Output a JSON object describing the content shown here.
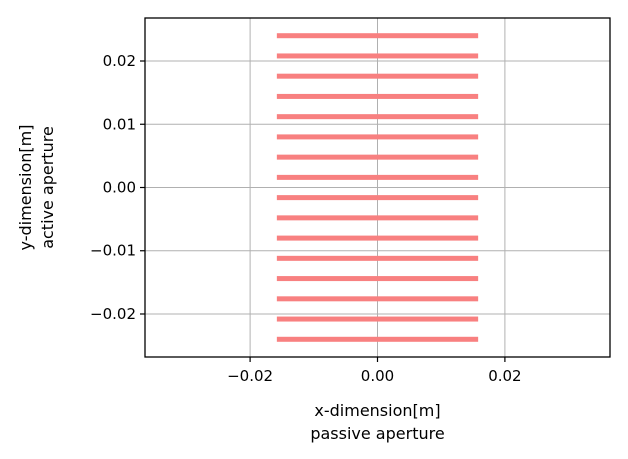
{
  "chart_data": {
    "type": "bar",
    "xlabel": "x-dimension[m]",
    "xlabel_line2": "passive aperture",
    "ylabel": "y-dimension[m]",
    "ylabel_line2": "active aperture",
    "xlim": [
      -0.0365,
      0.0365
    ],
    "ylim": [
      -0.0268,
      0.0268
    ],
    "grid": true,
    "xticks": [
      -0.02,
      0.0,
      0.02
    ],
    "xtick_labels": [
      "−0.02",
      "0.00",
      "0.02"
    ],
    "yticks": [
      -0.02,
      -0.01,
      0.0,
      0.01,
      0.02
    ],
    "ytick_labels": [
      "−0.02",
      "−0.01",
      "0.00",
      "0.01",
      "0.02"
    ],
    "element_color": "#f88080",
    "element_x_range": [
      -0.0158,
      0.0158
    ],
    "element_y_centers": [
      -0.024,
      -0.0208,
      -0.0176,
      -0.0144,
      -0.0112,
      -0.008,
      -0.0048,
      -0.0016,
      0.0016,
      0.0048,
      0.008,
      0.0112,
      0.0144,
      0.0176,
      0.0208,
      0.024
    ]
  }
}
